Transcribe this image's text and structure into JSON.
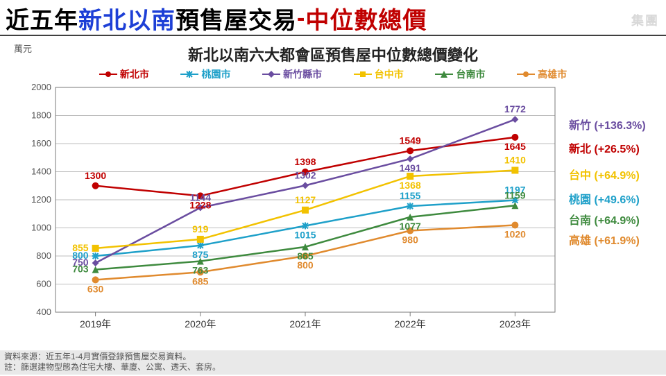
{
  "title": {
    "p1": "近五年",
    "c1": "#000000",
    "p2": "新北以南",
    "c2": "#1d3fd6",
    "p3": "預售屋交易",
    "c3": "#000000",
    "p4": "-",
    "c4": "#c00000",
    "p5": "中位數總價",
    "c5": "#c00000"
  },
  "watermark": "集團",
  "subtitle": "新北以南六大都會區預售屋中位數總價變化",
  "axis_unit": "萬元",
  "chart": {
    "type": "line",
    "categories": [
      "2019年",
      "2020年",
      "2021年",
      "2022年",
      "2023年"
    ],
    "y": {
      "min": 400,
      "max": 2000,
      "step": 200
    },
    "axis_color": "#7a7a7a",
    "grid_color": "#bdbdbd",
    "plot_bg": "#ffffff",
    "series": [
      {
        "name": "新北市",
        "color": "#c00000",
        "marker": "circle",
        "values": [
          1300,
          1228,
          1398,
          1549,
          1645
        ],
        "label_pos": [
          "above",
          "below",
          "above",
          "above",
          "below"
        ]
      },
      {
        "name": "桃園市",
        "color": "#1ea0c9",
        "marker": "star",
        "values": [
          800,
          875,
          1015,
          1155,
          1197
        ],
        "label_pos": [
          "left",
          "below",
          "below",
          "above",
          "above"
        ]
      },
      {
        "name": "新竹縣市",
        "color": "#6a4da0",
        "marker": "diamond",
        "values": [
          750,
          1144,
          1302,
          1491,
          1772
        ],
        "label_pos": [
          "left",
          "above",
          "above",
          "below",
          "above"
        ]
      },
      {
        "name": "台中市",
        "color": "#f2c200",
        "marker": "square",
        "values": [
          855,
          919,
          1127,
          1368,
          1410
        ],
        "label_pos": [
          "left",
          "above",
          "above",
          "below",
          "above"
        ]
      },
      {
        "name": "台南市",
        "color": "#3e8a3e",
        "marker": "triangle",
        "values": [
          703,
          763,
          865,
          1077,
          1159
        ],
        "label_pos": [
          "left",
          "below",
          "below",
          "below",
          "above"
        ]
      },
      {
        "name": "高雄市",
        "color": "#e08a2e",
        "marker": "circle",
        "values": [
          630,
          685,
          800,
          980,
          1020
        ],
        "label_pos": [
          "below",
          "below",
          "below",
          "below",
          "below"
        ]
      }
    ]
  },
  "end_labels": [
    {
      "text": "新竹 (+136.3%)",
      "color": "#6a4da0",
      "y": 1800
    },
    {
      "text": "新北 (+26.5%)",
      "color": "#c00000",
      "y": 1630
    },
    {
      "text": "台中 (+64.9%)",
      "color": "#f2c200",
      "y": 1440
    },
    {
      "text": "桃園 (+49.6%)",
      "color": "#1ea0c9",
      "y": 1270
    },
    {
      "text": "台南 (+64.9%)",
      "color": "#3e8a3e",
      "y": 1120
    },
    {
      "text": "高雄 (+61.9%)",
      "color": "#e08a2e",
      "y": 980
    }
  ],
  "footer_line1": "資料來源：近五年1-4月實價登錄預售屋交易資料。",
  "footer_line2": "註：篩選建物型態為住宅大樓、華廈、公寓、透天、套房。"
}
